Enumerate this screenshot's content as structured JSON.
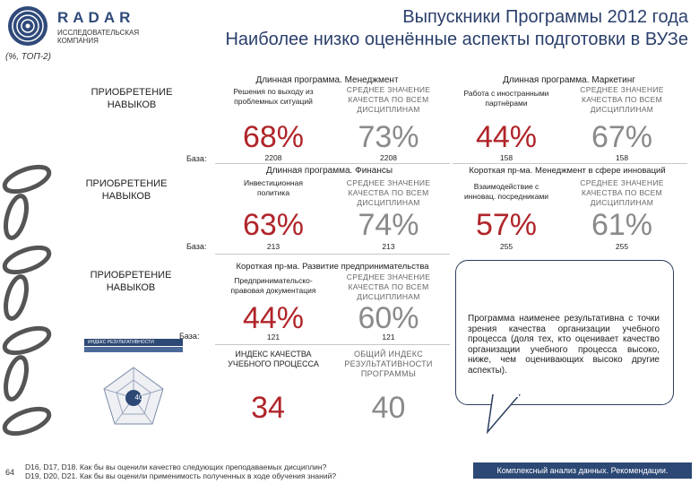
{
  "logo": {
    "name": "RADAR",
    "sub1": "ИССЛЕДОВАТЕЛЬСКАЯ",
    "sub2": "КОМПАНИЯ"
  },
  "header": {
    "title": "Выпускники Программы 2012 года",
    "subtitle": "Наиболее низко оценённые аспекты подготовки в ВУЗе",
    "note": "(%, ТОП-2)"
  },
  "left": {
    "acq1a": "ПРИОБРЕТЕНИЕ",
    "acq1b": "НАВЫКОВ",
    "acq2a": "ПРИОБРЕТЕНИЕ",
    "acq2b": "НАВЫКОВ",
    "acq3a": "ПРИОБРЕТЕНИЕ",
    "acq3b": "НАВЫКОВ",
    "base": "База:",
    "index_card_title": "ИНДЕКС РЕЗУЛЬТАТИВНОСТИ",
    "index_card_value": "40"
  },
  "avg_label": {
    "l1": "СРЕДНЕЕ ЗНАЧЕНИЕ",
    "l2": "КАЧЕСТВА ПО ВСЕМ",
    "l3": "ДИСЦИПЛИНАМ"
  },
  "blocks": {
    "b1": {
      "title": "Длинная программа. Менеджмент",
      "label1": "Решения по выходу из",
      "label2": "проблемных ситуаций",
      "value": "68%",
      "avg": "73%",
      "n1": "2208",
      "n2": "2208"
    },
    "b2": {
      "title": "Длинная программа. Маркетинг",
      "label1": "Работа с иностранными",
      "label2": "партнёрами",
      "value": "44%",
      "avg": "67%",
      "n1": "158",
      "n2": "158"
    },
    "b3": {
      "title": "Длинная программа. Финансы",
      "label1": "Инвестиционная",
      "label2": "политика",
      "value": "63%",
      "avg": "74%",
      "n1": "213",
      "n2": "213"
    },
    "b4": {
      "title": "Короткая пр-ма. Менеджмент в сфере инноваций",
      "label1": "Взаимодействие с",
      "label2": "инновац. посредниками",
      "value": "57%",
      "avg": "61%",
      "n1": "255",
      "n2": "255"
    },
    "b5": {
      "title": "Короткая пр-ма. Развитие предпринимательства",
      "label1": "Предпринимательско-",
      "label2": "правовая документация",
      "value": "44%",
      "avg": "60%",
      "n1": "121",
      "n2": "121"
    }
  },
  "index": {
    "q_label1": "ИНДЕКС КАЧЕСТВА",
    "q_label2": "УЧЕБНОГО ПРОЦЕССА",
    "r_label1": "ОБЩИЙ ИНДЕКС",
    "r_label2": "РЕЗУЛЬТАТИВНОСТИ",
    "r_label3": "ПРОГРАММЫ",
    "q_value": "34",
    "r_value": "40"
  },
  "callout": "Программа наименее результативна с точки зрения качества организации учебного процесса (доля тех, кто оценивает качество организации учебного процесса высоко, ниже, чем оценивающих высоко другие аспекты).",
  "footer": {
    "page": "64",
    "line1": "D16, D17, D18. Как бы вы оценили качество следующих преподаваемых дисциплин?",
    "line2": "D19, D20, D21. Как бы вы оценили применимость полученных в ходе обучения знаний?",
    "bar": "Комплексный анализ данных. Рекомендации."
  },
  "colors": {
    "red": "#b0252a",
    "navy": "#2c4874"
  }
}
